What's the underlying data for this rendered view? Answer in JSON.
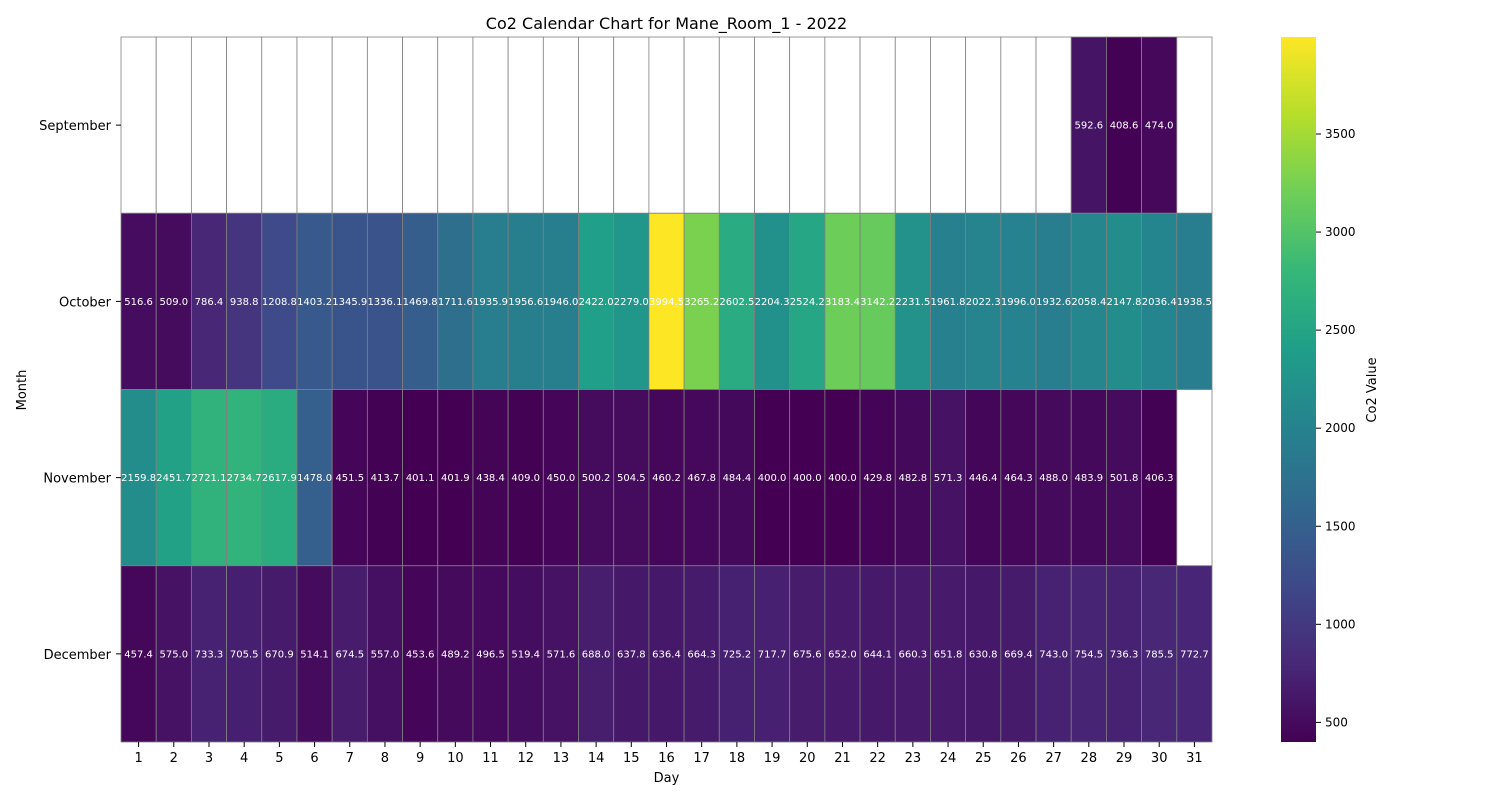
{
  "chart_data": {
    "type": "heatmap",
    "title": "Co2 Calendar Chart for Mane_Room_1 - 2022",
    "xlabel": "Day",
    "ylabel": "Month",
    "colorbar_label": "Co2 Value",
    "colormap": "viridis",
    "vmin": 400.0,
    "vmax": 3994.5,
    "colorbar_ticks": [
      500,
      1000,
      1500,
      2000,
      2500,
      3000,
      3500
    ],
    "x": [
      "1",
      "2",
      "3",
      "4",
      "5",
      "6",
      "7",
      "8",
      "9",
      "10",
      "11",
      "12",
      "13",
      "14",
      "15",
      "16",
      "17",
      "18",
      "19",
      "20",
      "21",
      "22",
      "23",
      "24",
      "25",
      "26",
      "27",
      "28",
      "29",
      "30",
      "31"
    ],
    "y": [
      "September",
      "October",
      "November",
      "December"
    ],
    "values": [
      [
        null,
        null,
        null,
        null,
        null,
        null,
        null,
        null,
        null,
        null,
        null,
        null,
        null,
        null,
        null,
        null,
        null,
        null,
        null,
        null,
        null,
        null,
        null,
        null,
        null,
        null,
        null,
        592.6,
        408.6,
        474.0,
        null
      ],
      [
        516.6,
        509.0,
        786.4,
        938.8,
        1208.8,
        1403.2,
        1345.9,
        1336.1,
        1469.8,
        1711.6,
        1935.9,
        1956.6,
        1946.0,
        2422.0,
        2279.0,
        3994.5,
        3265.2,
        2602.5,
        2204.3,
        2524.2,
        3183.4,
        3142.2,
        2231.5,
        1961.8,
        2022.3,
        1996.0,
        1932.6,
        2058.4,
        2147.8,
        2036.4,
        1938.5
      ],
      [
        2159.8,
        2451.7,
        2721.1,
        2734.7,
        2617.9,
        1478.0,
        451.5,
        413.7,
        401.1,
        401.9,
        438.4,
        409.0,
        450.0,
        500.2,
        504.5,
        460.2,
        467.8,
        484.4,
        400.0,
        400.0,
        400.0,
        429.8,
        482.8,
        571.3,
        446.4,
        464.3,
        488.0,
        483.9,
        501.8,
        406.3,
        null
      ],
      [
        457.4,
        575.0,
        733.3,
        705.5,
        670.9,
        514.1,
        674.5,
        557.0,
        453.6,
        489.2,
        496.5,
        519.4,
        571.6,
        688.0,
        637.8,
        636.4,
        664.3,
        725.2,
        717.7,
        675.6,
        652.0,
        644.1,
        660.3,
        651.8,
        630.8,
        669.4,
        743.0,
        754.5,
        736.3,
        785.5,
        772.7
      ]
    ],
    "value_format": "one decimal",
    "grid": true,
    "legend": "colorbar-right"
  }
}
